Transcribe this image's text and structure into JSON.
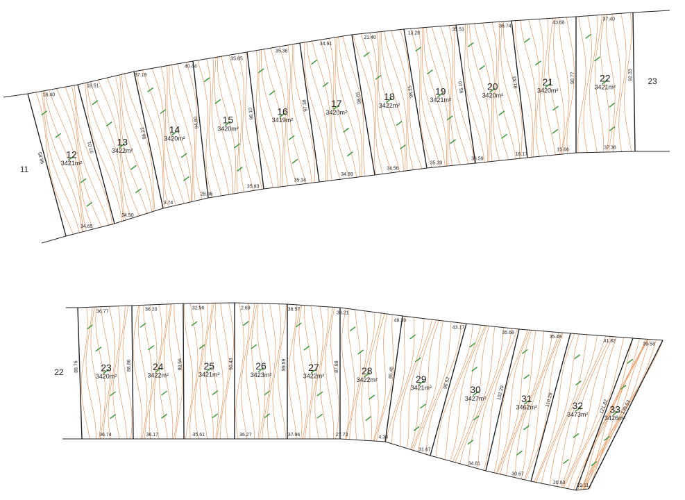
{
  "neighbors": [
    "11",
    "23",
    "22"
  ],
  "blocks": [
    {
      "lots": [
        {
          "number": "12",
          "area": "3421m²"
        },
        {
          "number": "13",
          "area": "3422m²"
        },
        {
          "number": "14",
          "area": "3420m²"
        },
        {
          "number": "15",
          "area": "3420m²"
        },
        {
          "number": "16",
          "area": "3419m²"
        },
        {
          "number": "17",
          "area": "3420m²"
        },
        {
          "number": "18",
          "area": "3422m²"
        },
        {
          "number": "19",
          "area": "3421m²"
        },
        {
          "number": "20",
          "area": "3420m²"
        },
        {
          "number": "21",
          "area": "3420m²"
        },
        {
          "number": "22",
          "area": "3421m²"
        }
      ],
      "top_dims": [
        "16.40",
        "18.51",
        "37.19",
        "40.44",
        "35.85",
        "35.36",
        "34.91",
        "21.40",
        "13.28",
        "35.53",
        "36.74",
        "43.68",
        "37.40"
      ],
      "bottom_dims": [
        "34.65",
        "34.50",
        "3.74",
        "28.46",
        "35.83",
        "35.34",
        "34.89",
        "34.56",
        "35.39",
        "36.59",
        "16.17",
        "15.66",
        "37.36"
      ],
      "side_dims": [
        "98.85",
        "97.01",
        "96.22",
        "94.80",
        "96.10",
        "97.38",
        "98.65",
        "98.25",
        "95.10",
        "91.83",
        "90.77",
        "92.33"
      ]
    },
    {
      "lots": [
        {
          "number": "23",
          "area": "3420m²"
        },
        {
          "number": "24",
          "area": "3422m²"
        },
        {
          "number": "25",
          "area": "3421m²"
        },
        {
          "number": "26",
          "area": "3423m²"
        },
        {
          "number": "27",
          "area": "3422m²"
        },
        {
          "number": "28",
          "area": "3422m²"
        },
        {
          "number": "29",
          "area": "3421m²"
        },
        {
          "number": "30",
          "area": "3427m²"
        },
        {
          "number": "31",
          "area": "3462m²"
        },
        {
          "number": "32",
          "area": "3473m²"
        },
        {
          "number": "33",
          "area": "3426m²"
        }
      ],
      "top_dims": [
        "36.77",
        "36.20",
        "32.96",
        "2.69",
        "36.57",
        "38.21",
        "48.39",
        "43.17",
        "35.68",
        "35.49",
        "41.82",
        "39.58"
      ],
      "bottom_dims": [
        "36.74",
        "36.17",
        "35.61",
        "36.27",
        "37.96",
        "27.73",
        "4.34",
        "31.67",
        "34.81",
        "30.67",
        "20.83",
        "19.11"
      ],
      "side_dims": [
        "88.76",
        "88.86",
        "89.56",
        "90.43",
        "89.59",
        "87.88",
        "85.45",
        "96.52",
        "102.29",
        "110.29",
        "121.82",
        "135.53"
      ]
    }
  ]
}
